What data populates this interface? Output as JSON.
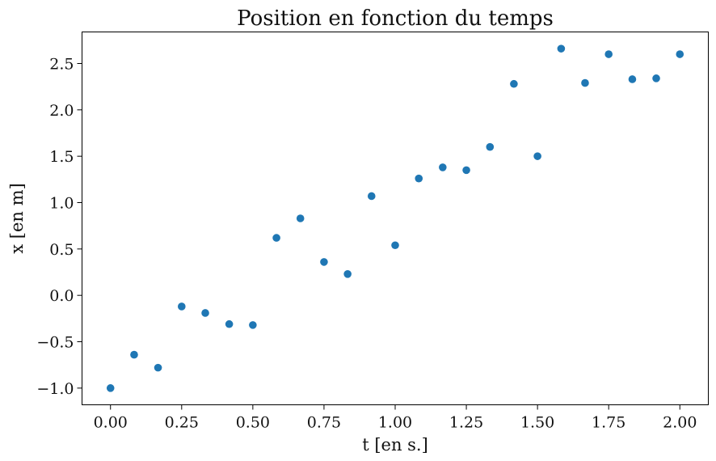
{
  "chart_data": {
    "type": "scatter",
    "title": "Position en fonction du temps",
    "xlabel": "t [en s.]",
    "ylabel": "x [en m]",
    "xlim": [
      -0.1,
      2.1
    ],
    "ylim": [
      -1.18,
      2.84
    ],
    "grid": false,
    "marker_color": "#1f77b4",
    "x_ticks": [
      {
        "value": 0.0,
        "label": "0.00"
      },
      {
        "value": 0.25,
        "label": "0.25"
      },
      {
        "value": 0.5,
        "label": "0.50"
      },
      {
        "value": 0.75,
        "label": "0.75"
      },
      {
        "value": 1.0,
        "label": "1.00"
      },
      {
        "value": 1.25,
        "label": "1.25"
      },
      {
        "value": 1.5,
        "label": "1.50"
      },
      {
        "value": 1.75,
        "label": "1.75"
      },
      {
        "value": 2.0,
        "label": "2.00"
      }
    ],
    "y_ticks": [
      {
        "value": -1.0,
        "label": "−1.0"
      },
      {
        "value": -0.5,
        "label": "−0.5"
      },
      {
        "value": 0.0,
        "label": "0.0"
      },
      {
        "value": 0.5,
        "label": "0.5"
      },
      {
        "value": 1.0,
        "label": "1.0"
      },
      {
        "value": 1.5,
        "label": "1.5"
      },
      {
        "value": 2.0,
        "label": "2.0"
      },
      {
        "value": 2.5,
        "label": "2.5"
      }
    ],
    "series": [
      {
        "name": "position",
        "x": [
          0.0,
          0.083,
          0.167,
          0.25,
          0.333,
          0.417,
          0.5,
          0.583,
          0.667,
          0.75,
          0.833,
          0.917,
          1.0,
          1.083,
          1.167,
          1.25,
          1.333,
          1.417,
          1.5,
          1.583,
          1.667,
          1.75,
          1.833,
          1.917,
          2.0
        ],
        "y": [
          -1.0,
          -0.64,
          -0.78,
          -0.12,
          -0.19,
          -0.31,
          -0.32,
          0.62,
          0.83,
          0.36,
          0.23,
          1.07,
          0.54,
          1.26,
          1.38,
          1.35,
          1.6,
          2.28,
          1.5,
          2.66,
          2.29,
          2.6,
          2.33,
          2.34,
          2.6
        ]
      }
    ]
  }
}
